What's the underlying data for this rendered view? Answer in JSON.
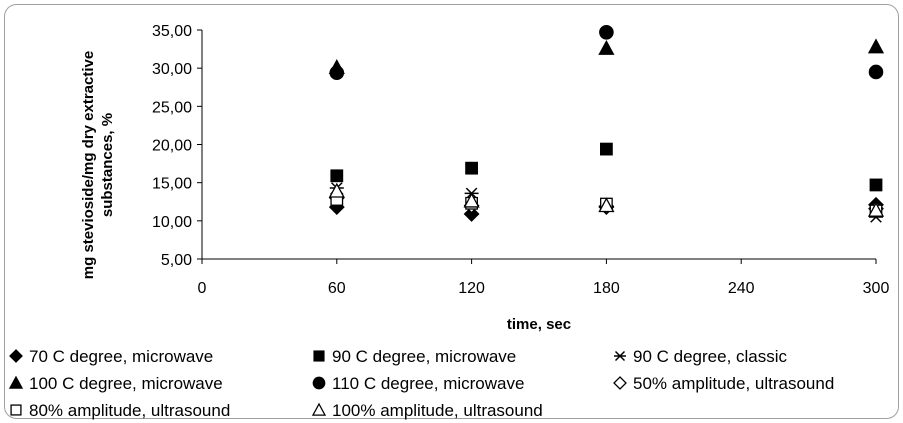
{
  "chart_data": {
    "type": "scatter",
    "xlabel": "time, sec",
    "ylabel_lines": [
      "mg stevioside/mg dry extractive",
      "substances, %"
    ],
    "xlim": [
      0,
      300
    ],
    "ylim": [
      5,
      35
    ],
    "x_ticks": [
      {
        "value": 0,
        "label": "0"
      },
      {
        "value": 60,
        "label": "60"
      },
      {
        "value": 120,
        "label": "120"
      },
      {
        "value": 180,
        "label": "180"
      },
      {
        "value": 240,
        "label": "240"
      },
      {
        "value": 300,
        "label": "300"
      }
    ],
    "y_ticks": [
      {
        "value": 5,
        "label": "5,00"
      },
      {
        "value": 10,
        "label": "10,00"
      },
      {
        "value": 15,
        "label": "15,00"
      },
      {
        "value": 20,
        "label": "20,00"
      },
      {
        "value": 25,
        "label": "25,00"
      },
      {
        "value": 30,
        "label": "30,00"
      },
      {
        "value": 35,
        "label": "35,00"
      }
    ],
    "grid": false,
    "legend_position": "bottom",
    "series": [
      {
        "name": "70 C degree, microwave",
        "marker": "diamond-filled",
        "points": [
          {
            "x": 60,
            "y": 11.8
          },
          {
            "x": 120,
            "y": 10.9
          },
          {
            "x": 180,
            "y": 11.8
          },
          {
            "x": 300,
            "y": 12.1
          }
        ]
      },
      {
        "name": "90 C degree, microwave",
        "marker": "square-filled",
        "points": [
          {
            "x": 60,
            "y": 15.9
          },
          {
            "x": 120,
            "y": 16.9
          },
          {
            "x": 180,
            "y": 19.4
          },
          {
            "x": 300,
            "y": 14.7
          }
        ]
      },
      {
        "name": "90 C degree, classic",
        "marker": "asterisk",
        "points": [
          {
            "x": 60,
            "y": 14.3
          },
          {
            "x": 120,
            "y": 13.6
          },
          {
            "x": 180,
            "y": 11.9
          },
          {
            "x": 300,
            "y": 10.5
          }
        ]
      },
      {
        "name": "100 C degree, microwave",
        "marker": "triangle-filled",
        "points": [
          {
            "x": 60,
            "y": 30.1
          },
          {
            "x": 180,
            "y": 32.6
          },
          {
            "x": 300,
            "y": 32.8
          }
        ]
      },
      {
        "name": "110 C degree, microwave",
        "marker": "circle-filled",
        "points": [
          {
            "x": 60,
            "y": 29.4
          },
          {
            "x": 180,
            "y": 34.7
          },
          {
            "x": 300,
            "y": 29.5
          }
        ]
      },
      {
        "name": "50% amplitude, ultrasound",
        "marker": "diamond-open",
        "points": [
          {
            "x": 60,
            "y": 13.0
          },
          {
            "x": 120,
            "y": 12.0
          },
          {
            "x": 180,
            "y": 11.9
          },
          {
            "x": 300,
            "y": 11.6
          }
        ]
      },
      {
        "name": "80% amplitude, ultrasound",
        "marker": "square-open",
        "points": [
          {
            "x": 60,
            "y": 12.8
          },
          {
            "x": 120,
            "y": 12.3
          },
          {
            "x": 180,
            "y": 12.2
          },
          {
            "x": 300,
            "y": 11.3
          }
        ]
      },
      {
        "name": "100% amplitude, ultrasound",
        "marker": "triangle-open",
        "points": [
          {
            "x": 60,
            "y": 13.9
          },
          {
            "x": 120,
            "y": 12.6
          },
          {
            "x": 180,
            "y": 12.0
          },
          {
            "x": 300,
            "y": 11.4
          }
        ]
      }
    ]
  }
}
